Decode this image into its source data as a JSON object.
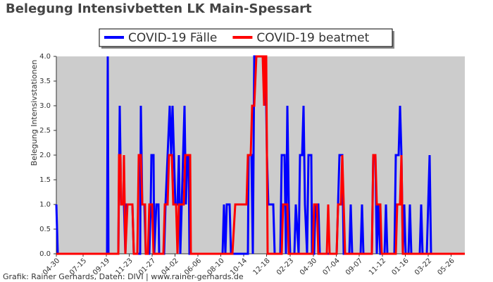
{
  "chart_data": {
    "type": "line",
    "title": "Belegung Intensivbetten LK Main-Spessart",
    "y_label": "Belegung Intensivstationen",
    "footer": "Grafik: Rainer Gerhards, Daten: DIVI | www.rainer-gerhards.de",
    "legend": "top",
    "xlim": [
      0,
      1160
    ],
    "xticks": [
      {
        "value": 0,
        "label": "04-30"
      },
      {
        "value": 76,
        "label": "07-15"
      },
      {
        "value": 142,
        "label": "09-19"
      },
      {
        "value": 207,
        "label": "11-23"
      },
      {
        "value": 272,
        "label": "01-27"
      },
      {
        "value": 337,
        "label": "04-02"
      },
      {
        "value": 402,
        "label": "06-06"
      },
      {
        "value": 467,
        "label": "08-10"
      },
      {
        "value": 532,
        "label": "10-14"
      },
      {
        "value": 597,
        "label": "12-18"
      },
      {
        "value": 664,
        "label": "02-23"
      },
      {
        "value": 730,
        "label": "04-30"
      },
      {
        "value": 795,
        "label": "07-04"
      },
      {
        "value": 860,
        "label": "09-07"
      },
      {
        "value": 926,
        "label": "11-12"
      },
      {
        "value": 991,
        "label": "01-16"
      },
      {
        "value": 1056,
        "label": "03-22"
      },
      {
        "value": 1121,
        "label": "05-26"
      }
    ],
    "ylim": [
      0,
      4
    ],
    "yticks": [
      {
        "value": 0,
        "label": "0.0"
      },
      0.5,
      {
        "value": 1,
        "label": "1.0"
      },
      1.5,
      {
        "value": 2,
        "label": "2.0"
      },
      2.5,
      {
        "value": 3,
        "label": "3.0"
      },
      3.5,
      {
        "value": 4,
        "label": "4.0"
      }
    ],
    "series": [
      {
        "name": "COVID-19 Fälle",
        "color": "#0000ff",
        "x": [
          0,
          4,
          144,
          146,
          148,
          176,
          180,
          184,
          192,
          196,
          200,
          216,
          220,
          238,
          240,
          244,
          250,
          254,
          264,
          268,
          270,
          276,
          278,
          284,
          290,
          292,
          306,
          310,
          316,
          322,
          326,
          330,
          334,
          338,
          344,
          348,
          352,
          356,
          360,
          364,
          368,
          372,
          376,
          378,
          472,
          476,
          480,
          484,
          492,
          496,
          544,
          546,
          554,
          558,
          562,
          568,
          594,
          598,
          602,
          616,
          620,
          636,
          640,
          648,
          652,
          656,
          660,
          664,
          676,
          680,
          688,
          692,
          698,
          702,
          706,
          712,
          716,
          724,
          726,
          732,
          736,
          744,
          748,
          796,
          800,
          804,
          812,
          816,
          832,
          836,
          840,
          864,
          868,
          872,
          896,
          900,
          906,
          910,
          914,
          920,
          932,
          936,
          940,
          960,
          964,
          972,
          976,
          980,
          984,
          988,
          992,
          1000,
          1004,
          1008,
          1032,
          1036,
          1040,
          1052,
          1056,
          1060,
          1064,
          1160
        ],
        "values": [
          1,
          0,
          0,
          4,
          0,
          0,
          3,
          1,
          1,
          0,
          1,
          1,
          0,
          0,
          3,
          1,
          1,
          0,
          0,
          1,
          2,
          2,
          0,
          1,
          1,
          0,
          0,
          1,
          2,
          3,
          2,
          3,
          2,
          1,
          1,
          2,
          0,
          1,
          2,
          3,
          1,
          2,
          2,
          0,
          0,
          1,
          0,
          1,
          1,
          0,
          0,
          2,
          2,
          0,
          4,
          4,
          4,
          2,
          1,
          1,
          0,
          0,
          2,
          2,
          0,
          3,
          1,
          0,
          0,
          1,
          0,
          2,
          2,
          3,
          1,
          0,
          2,
          2,
          0,
          0,
          1,
          1,
          0,
          0,
          1,
          2,
          2,
          0,
          0,
          1,
          0,
          0,
          1,
          0,
          0,
          2,
          2,
          0,
          1,
          0,
          0,
          1,
          0,
          0,
          2,
          2,
          3,
          2,
          0,
          1,
          0,
          0,
          1,
          0,
          0,
          1,
          0,
          0,
          1,
          2,
          0,
          0
        ]
      },
      {
        "name": "COVID-19 beatmet",
        "color": "#ff0000",
        "x": [
          0,
          176,
          178,
          182,
          184,
          190,
          192,
          196,
          202,
          216,
          220,
          230,
          234,
          240,
          244,
          252,
          254,
          260,
          264,
          272,
          276,
          304,
          308,
          316,
          320,
          328,
          332,
          340,
          344,
          348,
          362,
          366,
          380,
          382,
          500,
          508,
          540,
          544,
          552,
          556,
          562,
          568,
          586,
          590,
          592,
          596,
          600,
          640,
          644,
          656,
          660,
          728,
          732,
          740,
          744,
          768,
          772,
          776,
          796,
          800,
          808,
          812,
          816,
          820,
          896,
          900,
          906,
          910,
          920,
          924,
          964,
          968,
          976,
          980,
          984,
          1160
        ],
        "values": [
          0,
          0,
          2,
          2,
          1,
          1,
          2,
          0,
          1,
          1,
          0,
          0,
          2,
          2,
          1,
          1,
          0,
          0,
          1,
          1,
          0,
          0,
          1,
          1,
          2,
          2,
          1,
          1,
          0,
          1,
          1,
          2,
          2,
          0,
          0,
          1,
          1,
          2,
          2,
          3,
          3,
          4,
          4,
          3,
          4,
          4,
          0,
          0,
          1,
          1,
          0,
          0,
          1,
          1,
          0,
          0,
          1,
          0,
          0,
          1,
          1,
          2,
          1,
          0,
          0,
          2,
          2,
          1,
          1,
          0,
          0,
          1,
          1,
          2,
          0,
          0
        ]
      }
    ]
  }
}
